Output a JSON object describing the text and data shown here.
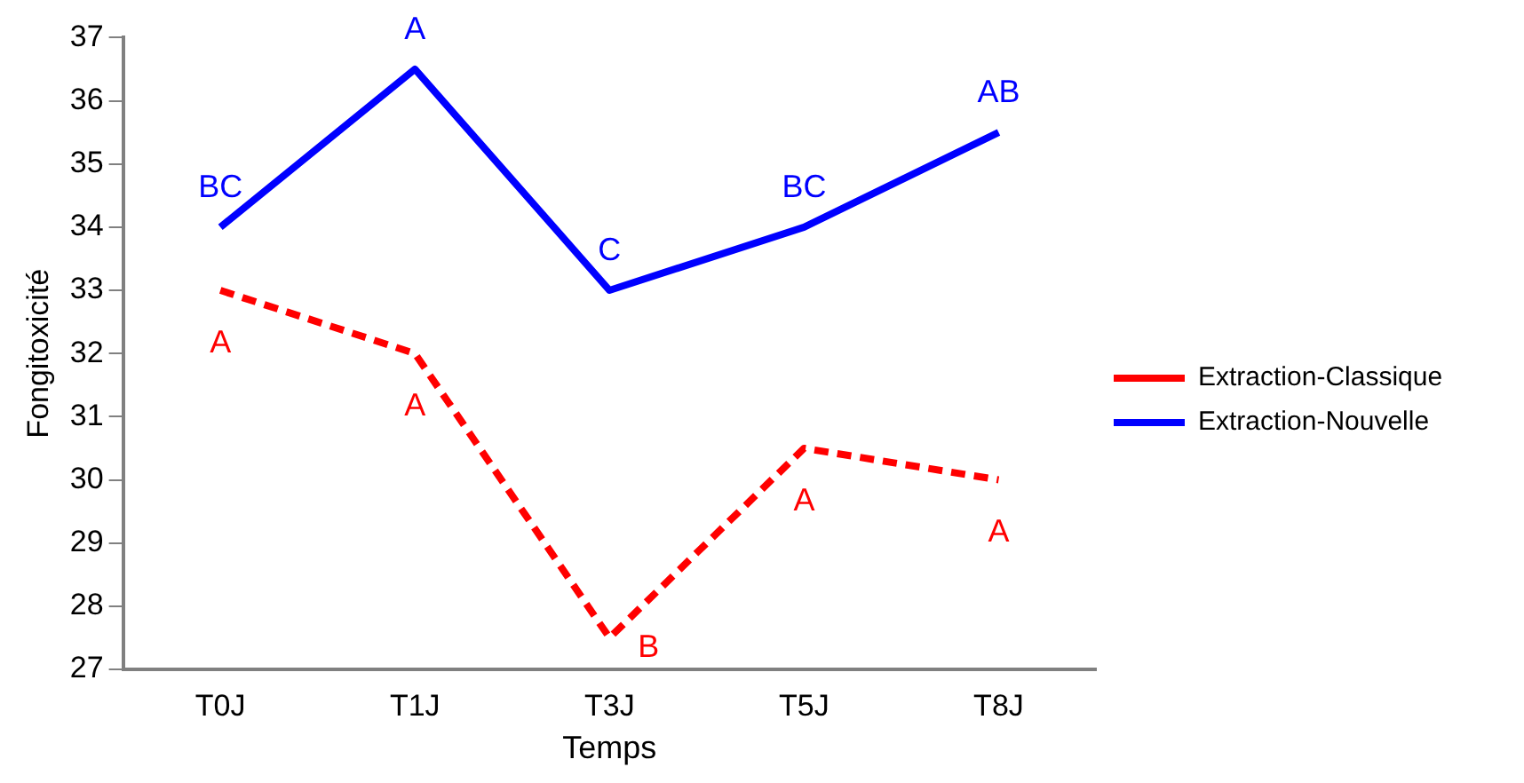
{
  "chart_data": {
    "type": "line",
    "xlabel": "Temps",
    "ylabel": "Fongitoxicité",
    "categories": [
      "T0J",
      "T1J",
      "T3J",
      "T5J",
      "T8J"
    ],
    "series": [
      {
        "name": "Extraction-Classique",
        "color": "#ff0000",
        "values": [
          33,
          32,
          27.5,
          30.5,
          30
        ],
        "line_style": "dashed"
      },
      {
        "name": "Extraction-Nouvelle",
        "color": "#0000ff",
        "values": [
          34,
          36.5,
          33,
          34,
          35.5
        ],
        "line_style": "solid"
      }
    ],
    "ylim": [
      27,
      37
    ],
    "yticks": [
      27,
      28,
      29,
      30,
      31,
      32,
      33,
      34,
      35,
      36,
      37
    ],
    "grid": false,
    "legend": "right",
    "marker": "none",
    "annotations": [
      {
        "text": "BC",
        "x": "T0J",
        "y": 34
      },
      {
        "text": "A",
        "x": "T1J",
        "y": 36.5
      },
      {
        "text": "C",
        "x": "T3J",
        "y": 33
      },
      {
        "text": "BC",
        "x": "T5J",
        "y": 34
      },
      {
        "text": "AB",
        "x": "T8J",
        "y": 35.5
      },
      {
        "text": "A",
        "x": "T0J",
        "y": 33
      },
      {
        "text": "A",
        "x": "T1J",
        "y": 32
      },
      {
        "text": "B",
        "x": "T3J",
        "y": 27.5
      },
      {
        "text": "A",
        "x": "T5J",
        "y": 30.5
      },
      {
        "text": "A",
        "x": "T8J",
        "y": 30
      }
    ]
  }
}
